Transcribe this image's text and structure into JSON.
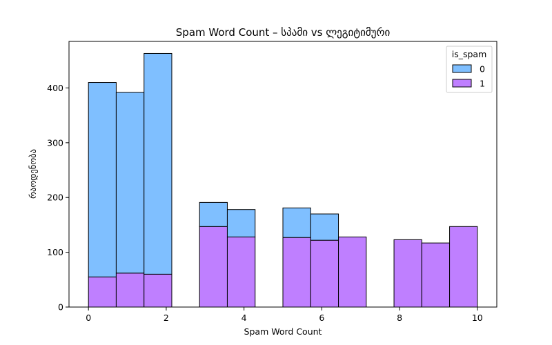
{
  "chart_data": {
    "type": "bar",
    "title": "Spam Word Count – სპამი vs ლეგიტიმური",
    "xlabel": "Spam Word Count",
    "ylabel": "რაოდენობა",
    "xlim": [
      -0.5,
      10.5
    ],
    "ylim": [
      0,
      485
    ],
    "xticks": [
      0,
      2,
      4,
      6,
      8,
      10
    ],
    "yticks": [
      0,
      100,
      200,
      300,
      400
    ],
    "grid": false,
    "stacked": true,
    "bin_edges": [
      0,
      0.714,
      1.429,
      2.143,
      2.857,
      3.571,
      4.286,
      5.0,
      5.714,
      6.429,
      7.143,
      7.857,
      8.571,
      9.286,
      10.0
    ],
    "legend": {
      "title": "is_spam",
      "position": "top-right"
    },
    "series": [
      {
        "name": "0",
        "color": "#7fbfff",
        "values": [
          355,
          330,
          403,
          0,
          44,
          50,
          0,
          54,
          48,
          0,
          0,
          0,
          0,
          0
        ]
      },
      {
        "name": "1",
        "color": "#bf7fff",
        "values": [
          55,
          62,
          60,
          0,
          147,
          128,
          0,
          127,
          122,
          128,
          0,
          123,
          117,
          147
        ]
      }
    ]
  }
}
